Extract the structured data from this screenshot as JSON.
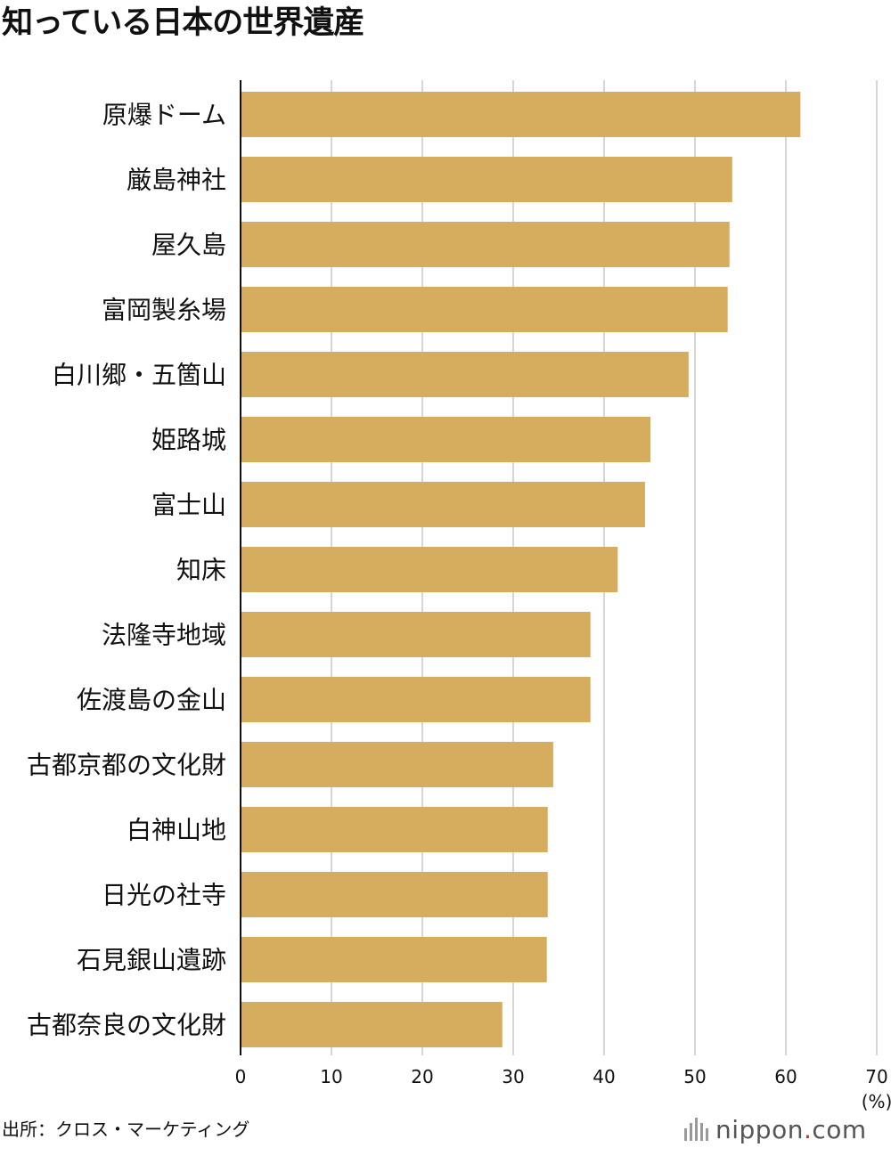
{
  "title": "知っている日本の世界遺産",
  "source": "出所：クロス・マーケティング",
  "logo": {
    "name": "nippon",
    "dot": ".",
    "suffix": "com",
    "icon": "bars-icon"
  },
  "colors": {
    "bar": "#d6ad5f",
    "grid": "#c8c8c8",
    "axis": "#111111"
  },
  "chart_data": {
    "type": "bar",
    "orientation": "horizontal",
    "title": "知っている日本の世界遺産",
    "categories": [
      "原爆ドーム",
      "厳島神社",
      "屋久島",
      "富岡製糸場",
      "白川郷・五箇山",
      "姫路城",
      "富士山",
      "知床",
      "法隆寺地域",
      "佐渡島の金山",
      "古都京都の文化財",
      "白神山地",
      "日光の社寺",
      "石見銀山遺跡",
      "古都奈良の文化財"
    ],
    "values": [
      61.6,
      54.1,
      53.8,
      53.6,
      49.3,
      45.1,
      44.5,
      41.5,
      38.5,
      38.5,
      34.4,
      33.8,
      33.8,
      33.7,
      28.8
    ],
    "xlim": [
      0,
      70
    ],
    "xticks": [
      0,
      10,
      20,
      30,
      40,
      50,
      60,
      70
    ],
    "unit": "(%)",
    "grid": true
  }
}
